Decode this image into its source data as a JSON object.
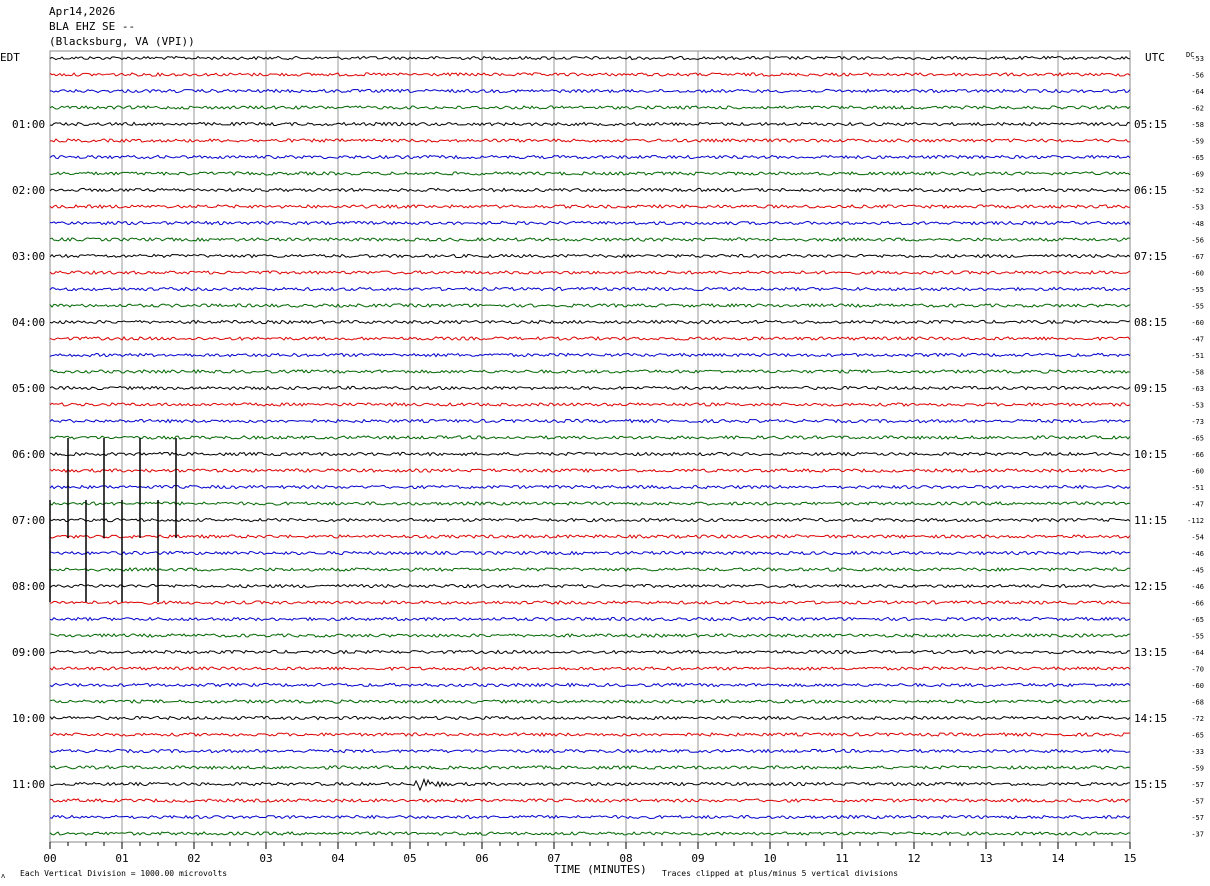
{
  "header": {
    "date": "Apr14,2026",
    "station": "BLA EHZ SE --",
    "location": "(Blacksburg, VA (VPI))"
  },
  "labels": {
    "left_tz": "EDT",
    "right_tz": "UTC",
    "dc_label": "DC",
    "xlabel": "TIME (MINUTES)",
    "scale_note": "Each Vertical Division = 1000.00 microvolts",
    "clip_note": "Traces clipped at plus/minus 5 vertical divisions",
    "corner_mark": "ᴧ"
  },
  "chart_data": {
    "type": "line",
    "xlabel": "TIME (MINUTES)",
    "x_ticks": [
      "00",
      "01",
      "02",
      "03",
      "04",
      "05",
      "06",
      "07",
      "08",
      "09",
      "10",
      "11",
      "12",
      "13",
      "14",
      "15"
    ],
    "xlim": [
      0,
      15
    ],
    "grid": true,
    "trace_count": 48,
    "traces_per_hour": 4,
    "minutes_per_trace": 15,
    "trace_colors": [
      "#000000",
      "#dd0000",
      "#0000cc",
      "#006600"
    ],
    "left_hour_labels": [
      "01:00",
      "02:00",
      "03:00",
      "04:00",
      "05:00",
      "06:00",
      "07:00",
      "08:00",
      "09:00",
      "10:00",
      "11:00"
    ],
    "right_hour_labels": [
      "05:15",
      "06:15",
      "07:15",
      "08:15",
      "09:15",
      "10:15",
      "11:15",
      "12:15",
      "13:15",
      "14:15",
      "15:15"
    ],
    "dc_offsets": [
      -53,
      -56,
      -64,
      -62,
      -58,
      -59,
      -65,
      -69,
      -52,
      -53,
      -48,
      -56,
      -67,
      -60,
      -55,
      -55,
      -60,
      -47,
      -51,
      -58,
      -63,
      -53,
      -73,
      -65,
      -66,
      -60,
      -51,
      -47,
      -112,
      -54,
      -46,
      -45,
      -46,
      -66,
      -65,
      -55,
      -64,
      -70,
      -60,
      -68,
      -72,
      -65,
      -33,
      -59,
      -57,
      -57,
      -57,
      -37
    ],
    "events": [
      {
        "trace": 44,
        "minute": 5.1,
        "description_shown": "seismic arrival burst"
      }
    ],
    "spikes": [
      {
        "minute": 0.0
      },
      {
        "minute": 0.25
      },
      {
        "minute": 0.5
      },
      {
        "minute": 0.75
      },
      {
        "minute": 1.0
      },
      {
        "minute": 1.25
      },
      {
        "minute": 1.5
      },
      {
        "minute": 1.75
      }
    ]
  }
}
